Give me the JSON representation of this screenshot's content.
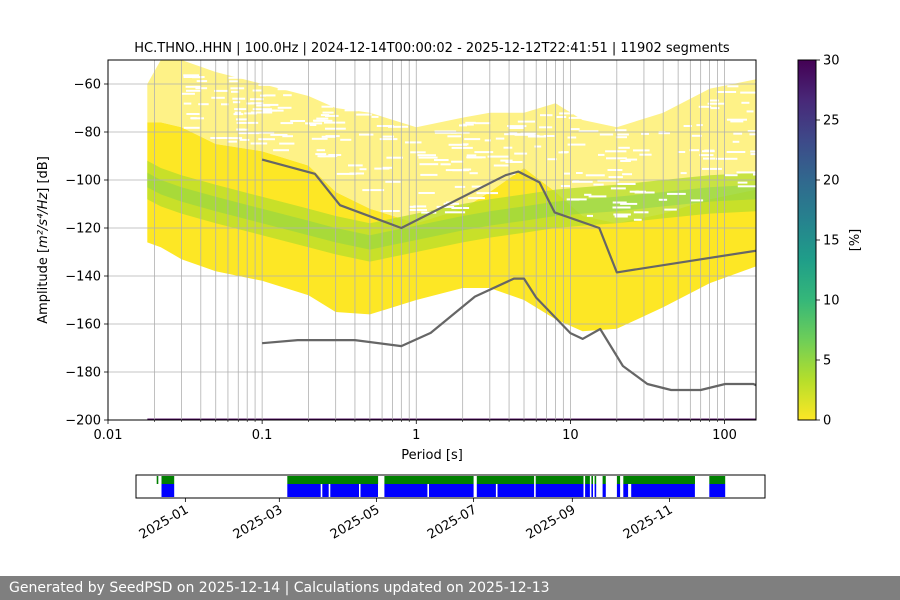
{
  "footer": {
    "text": "Generated by SeedPSD on 2025-12-14 | Calculations updated on 2025-12-13"
  },
  "chart_data": [
    {
      "type": "heatmap",
      "title": "HC.THNO..HHN | 100.0Hz | 2024-12-14T00:00:02 - 2025-12-12T22:41:51 | 11902 segments",
      "xlabel": "Period [s]",
      "ylabel_parts": {
        "prefix": "Amplitude [",
        "mathtext": "m²/s⁴/Hz",
        "suffix": "] [dB]"
      },
      "xscale": "log",
      "xlim": [
        0.01,
        160
      ],
      "ylim": [
        -200,
        -50
      ],
      "x_ticks": [
        0.01,
        0.1,
        1,
        10,
        100
      ],
      "x_tick_labels": [
        "0.01",
        "0.1",
        "1",
        "10",
        "100"
      ],
      "y_ticks": [
        -60,
        -80,
        -100,
        -120,
        -140,
        -160,
        -180,
        -200
      ],
      "y_tick_labels": [
        "−60",
        "−80",
        "−100",
        "−120",
        "−140",
        "−160",
        "−180",
        "−200"
      ],
      "grid": true,
      "psd_density_envelope": {
        "period": [
          0.018,
          0.022,
          0.03,
          0.05,
          0.1,
          0.2,
          0.3,
          0.5,
          1,
          2,
          3,
          5,
          8,
          12,
          20,
          40,
          80,
          160
        ],
        "upper_db": [
          -76,
          -76,
          -78,
          -85,
          -88,
          -94,
          -105,
          -112,
          -118,
          -112,
          -105,
          -95,
          -105,
          -115,
          -118,
          -114,
          -108,
          -104
        ],
        "lower_db": [
          -126,
          -128,
          -133,
          -138,
          -142,
          -148,
          -155,
          -156,
          -150,
          -145,
          -145,
          -150,
          -158,
          -163,
          -162,
          -153,
          -143,
          -136
        ],
        "sparse_upper_db": [
          -60,
          -50,
          -50,
          -55,
          -60,
          -65,
          -70,
          -72,
          -78,
          -74,
          -72,
          -72,
          -68,
          -75,
          -78,
          -72,
          -62,
          -58
        ],
        "mode_db": [
          -100,
          -103,
          -106,
          -110,
          -115,
          -120,
          -123,
          -126,
          -122,
          -118,
          -116,
          -114,
          -112,
          -111,
          -110,
          -108,
          -106,
          -105
        ]
      },
      "nhnm": {
        "period": [
          0.1,
          0.22,
          0.32,
          0.8,
          3.8,
          4.6,
          6.3,
          7.9,
          15.4,
          20,
          354.8
        ],
        "db": [
          -91.5,
          -97.4,
          -110.5,
          -120,
          -98,
          -96.5,
          -101,
          -113.5,
          -120,
          -138.5,
          -126
        ]
      },
      "nlnm": {
        "period": [
          0.1,
          0.17,
          0.4,
          0.8,
          1.24,
          2.4,
          4.3,
          5.0,
          6.0,
          10.0,
          12.0,
          15.6,
          21.9,
          31.6,
          45.0,
          70.0,
          101.0,
          154.0,
          160.0
        ],
        "db": [
          -168,
          -166.7,
          -166.7,
          -169.2,
          -163.7,
          -148.6,
          -141.1,
          -141.1,
          -149,
          -163.8,
          -166.2,
          -162.1,
          -177.5,
          -185,
          -187.5,
          -187.5,
          -185,
          -185,
          -185.5
        ]
      },
      "line_color": "#666666",
      "colorbar": {
        "label": "[%]",
        "min": 0,
        "max": 30,
        "ticks": [
          0,
          5,
          10,
          15,
          20,
          25,
          30
        ],
        "colormap": "viridis_r",
        "stops": [
          "#fde725",
          "#b5de2b",
          "#6ece58",
          "#35b779",
          "#1f9e89",
          "#26828e",
          "#31688e",
          "#3e4989",
          "#482878",
          "#440154"
        ]
      }
    },
    {
      "type": "timeline",
      "x_tick_labels": [
        "2025-01",
        "2025-03",
        "2025-05",
        "2025-07",
        "2025-09",
        "2025-11"
      ],
      "x_tick_dates": [
        "2025-01-01",
        "2025-03-01",
        "2025-05-01",
        "2025-07-01",
        "2025-09-01",
        "2025-11-01"
      ],
      "xlim": [
        "2024-12-01",
        "2025-12-31"
      ],
      "green_color": "#008000",
      "blue_color": "#0000ff",
      "green_spans": [
        [
          "2024-12-14",
          "2024-12-15"
        ],
        [
          "2024-12-17",
          "2024-12-25"
        ],
        [
          "2025-03-06",
          "2025-05-02"
        ],
        [
          "2025-05-06",
          "2025-07-01"
        ],
        [
          "2025-07-03",
          "2025-08-08"
        ],
        [
          "2025-08-09",
          "2025-09-08"
        ],
        [
          "2025-09-09",
          "2025-09-12"
        ],
        [
          "2025-09-13",
          "2025-09-14"
        ],
        [
          "2025-09-15",
          "2025-09-16"
        ],
        [
          "2025-09-20",
          "2025-09-22"
        ],
        [
          "2025-09-29",
          "2025-10-01"
        ],
        [
          "2025-10-03",
          "2025-11-17"
        ],
        [
          "2025-11-26",
          "2025-12-06"
        ]
      ],
      "blue_spans": [
        [
          "2024-12-17",
          "2024-12-25"
        ],
        [
          "2025-03-06",
          "2025-03-27"
        ],
        [
          "2025-03-28",
          "2025-04-01"
        ],
        [
          "2025-04-02",
          "2025-04-20"
        ],
        [
          "2025-04-21",
          "2025-05-02"
        ],
        [
          "2025-05-06",
          "2025-06-02"
        ],
        [
          "2025-06-03",
          "2025-07-01"
        ],
        [
          "2025-07-03",
          "2025-07-15"
        ],
        [
          "2025-07-16",
          "2025-08-08"
        ],
        [
          "2025-08-09",
          "2025-09-08"
        ],
        [
          "2025-09-09",
          "2025-09-12"
        ],
        [
          "2025-09-13",
          "2025-09-14"
        ],
        [
          "2025-09-15",
          "2025-09-16"
        ],
        [
          "2025-09-20",
          "2025-09-22"
        ],
        [
          "2025-09-29",
          "2025-10-01"
        ],
        [
          "2025-10-03",
          "2025-10-06"
        ],
        [
          "2025-10-08",
          "2025-11-17"
        ],
        [
          "2025-11-26",
          "2025-12-06"
        ]
      ]
    }
  ]
}
